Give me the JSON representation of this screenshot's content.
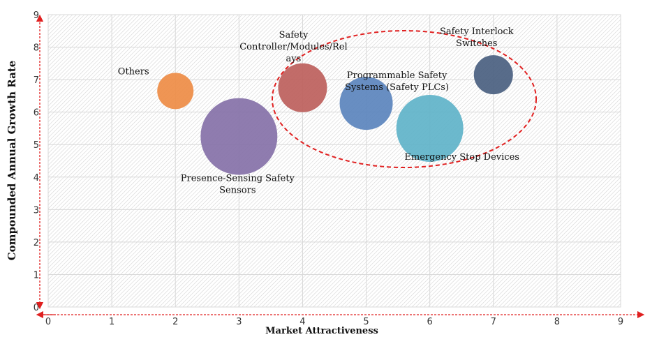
{
  "chart_data": {
    "type": "bubble",
    "xlabel": "Market Attractiveness",
    "ylabel": "Compounded  Annual  Growth Rate",
    "xlim": [
      0,
      9
    ],
    "ylim": [
      0,
      9
    ],
    "xticks": [
      "0",
      "1",
      "2",
      "3",
      "4",
      "5",
      "6",
      "7",
      "8",
      "9"
    ],
    "yticks": [
      "0",
      "1",
      "2",
      "3",
      "4",
      "5",
      "6",
      "7",
      "8",
      "9"
    ],
    "grid": true,
    "points": [
      {
        "label": "Others",
        "label_lines": [
          "Others"
        ],
        "x": 2.0,
        "y": 6.65,
        "size": 26,
        "color": "#ee8c45"
      },
      {
        "label": "Presence-Sensing Safety Sensors",
        "label_lines": [
          "Presence-Sensing Safety",
          "Sensors"
        ],
        "x": 3.0,
        "y": 5.25,
        "size": 55,
        "color": "#8571a8"
      },
      {
        "label": "Safety Controller/Modules/Relays",
        "label_lines": [
          "Safety",
          "Controller/Modules/Rel",
          "ays"
        ],
        "x": 4.0,
        "y": 6.75,
        "size": 35,
        "color": "#bd5f5c"
      },
      {
        "label": "Programmable Safety Systems (Safety PLCs)",
        "label_lines": [
          "Programmable Safety",
          "Systems (Safety PLCs)"
        ],
        "x": 5.0,
        "y": 6.27,
        "size": 38,
        "color": "#5b84bd"
      },
      {
        "label": "Emergency Stop Devices",
        "label_lines": [
          "Emergency Stop Devices"
        ],
        "x": 6.0,
        "y": 5.5,
        "size": 48,
        "color": "#5fb3c9"
      },
      {
        "label": "Safety Interlock Switches",
        "label_lines": [
          "Safety Interlock",
          "Switches"
        ],
        "x": 7.0,
        "y": 7.15,
        "size": 28,
        "color": "#4a5f80"
      }
    ],
    "highlight_color": "#e02020"
  }
}
